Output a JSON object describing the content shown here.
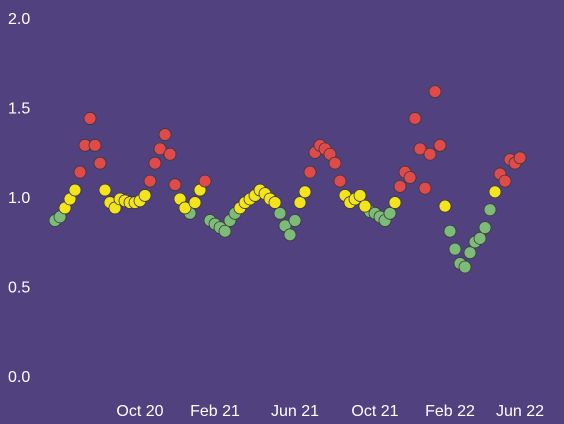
{
  "chart_data": {
    "type": "scatter",
    "categories": [
      null,
      null,
      null,
      null,
      null,
      null,
      null,
      null,
      null,
      null,
      null,
      null,
      null,
      null,
      null,
      null,
      null,
      "Oct 20",
      null,
      null,
      null,
      null,
      null,
      null,
      null,
      null,
      null,
      null,
      null,
      null,
      null,
      null,
      "Feb 21",
      null,
      null,
      null,
      null,
      null,
      null,
      null,
      null,
      null,
      null,
      null,
      null,
      null,
      null,
      null,
      "Jun 21",
      null,
      null,
      null,
      null,
      null,
      null,
      null,
      null,
      null,
      null,
      null,
      null,
      null,
      null,
      null,
      "Oct 21",
      null,
      null,
      null,
      null,
      null,
      null,
      null,
      null,
      null,
      null,
      null,
      null,
      null,
      null,
      "Feb 22",
      null,
      null,
      null,
      null,
      null,
      null,
      null,
      null,
      null,
      null,
      null,
      null,
      null,
      "Jun 22"
    ],
    "series": [
      {
        "color": "#7dbb78",
        "values": [
          0.88,
          0.9,
          null,
          null,
          null,
          null,
          null,
          null,
          null,
          null,
          null,
          null,
          null,
          null,
          null,
          null,
          null,
          null,
          null,
          null,
          null,
          null,
          null,
          null,
          null,
          null,
          null,
          0.92,
          null,
          null,
          null,
          0.88,
          0.86,
          0.84,
          0.82,
          0.88,
          0.92,
          null,
          null,
          null,
          null,
          null,
          null,
          null,
          null,
          0.92,
          0.85,
          0.8,
          0.88,
          null,
          null,
          null,
          null,
          null,
          null,
          null,
          null,
          null,
          null,
          null,
          null,
          null,
          null,
          0.93,
          0.92,
          0.9,
          0.88,
          0.92,
          null,
          null,
          null,
          null,
          null,
          null,
          null,
          null,
          null,
          null,
          null,
          0.82,
          0.72,
          0.64,
          0.62,
          0.7,
          0.76,
          0.78,
          0.84,
          0.94,
          null,
          null,
          null,
          null,
          null,
          null
        ]
      },
      {
        "color": "#f4e41c",
        "values": [
          null,
          null,
          0.95,
          1.0,
          1.05,
          null,
          null,
          null,
          null,
          null,
          1.05,
          0.98,
          0.95,
          1.0,
          0.99,
          0.98,
          0.98,
          0.99,
          1.02,
          null,
          null,
          null,
          null,
          null,
          null,
          1.0,
          0.95,
          null,
          0.98,
          1.05,
          null,
          null,
          null,
          null,
          null,
          null,
          null,
          0.95,
          0.98,
          1.0,
          1.02,
          1.05,
          1.03,
          1.0,
          0.98,
          null,
          null,
          null,
          null,
          0.98,
          1.04,
          null,
          null,
          null,
          null,
          null,
          null,
          null,
          1.02,
          0.98,
          1.0,
          1.02,
          0.96,
          null,
          null,
          null,
          null,
          null,
          0.98,
          null,
          null,
          null,
          null,
          null,
          null,
          null,
          null,
          null,
          0.96,
          null,
          null,
          null,
          null,
          null,
          null,
          null,
          null,
          null,
          1.04,
          null,
          null,
          null,
          null,
          null
        ]
      },
      {
        "color": "#e04a4a",
        "values": [
          null,
          null,
          null,
          null,
          null,
          1.15,
          1.3,
          1.45,
          1.3,
          1.2,
          null,
          null,
          null,
          null,
          null,
          null,
          null,
          null,
          null,
          1.1,
          1.2,
          1.28,
          1.36,
          1.25,
          1.08,
          null,
          null,
          null,
          null,
          null,
          1.1,
          null,
          null,
          null,
          null,
          null,
          null,
          null,
          null,
          null,
          null,
          null,
          null,
          null,
          null,
          null,
          null,
          null,
          null,
          null,
          null,
          1.15,
          1.26,
          1.3,
          1.28,
          1.25,
          1.2,
          1.1,
          null,
          null,
          null,
          null,
          null,
          null,
          null,
          null,
          null,
          null,
          null,
          1.07,
          1.15,
          1.12,
          1.45,
          1.28,
          1.06,
          1.25,
          1.6,
          1.3,
          null,
          null,
          null,
          null,
          null,
          null,
          null,
          null,
          null,
          null,
          null,
          1.14,
          1.1,
          1.22,
          1.2,
          1.23
        ]
      }
    ],
    "ylim": [
      0,
      2
    ],
    "yticks": [
      {
        "value": 0,
        "label": "0.0"
      },
      0.5,
      {
        "value": 1,
        "label": "1.0"
      },
      1.5,
      {
        "value": 2,
        "label": "2.0"
      }
    ]
  }
}
